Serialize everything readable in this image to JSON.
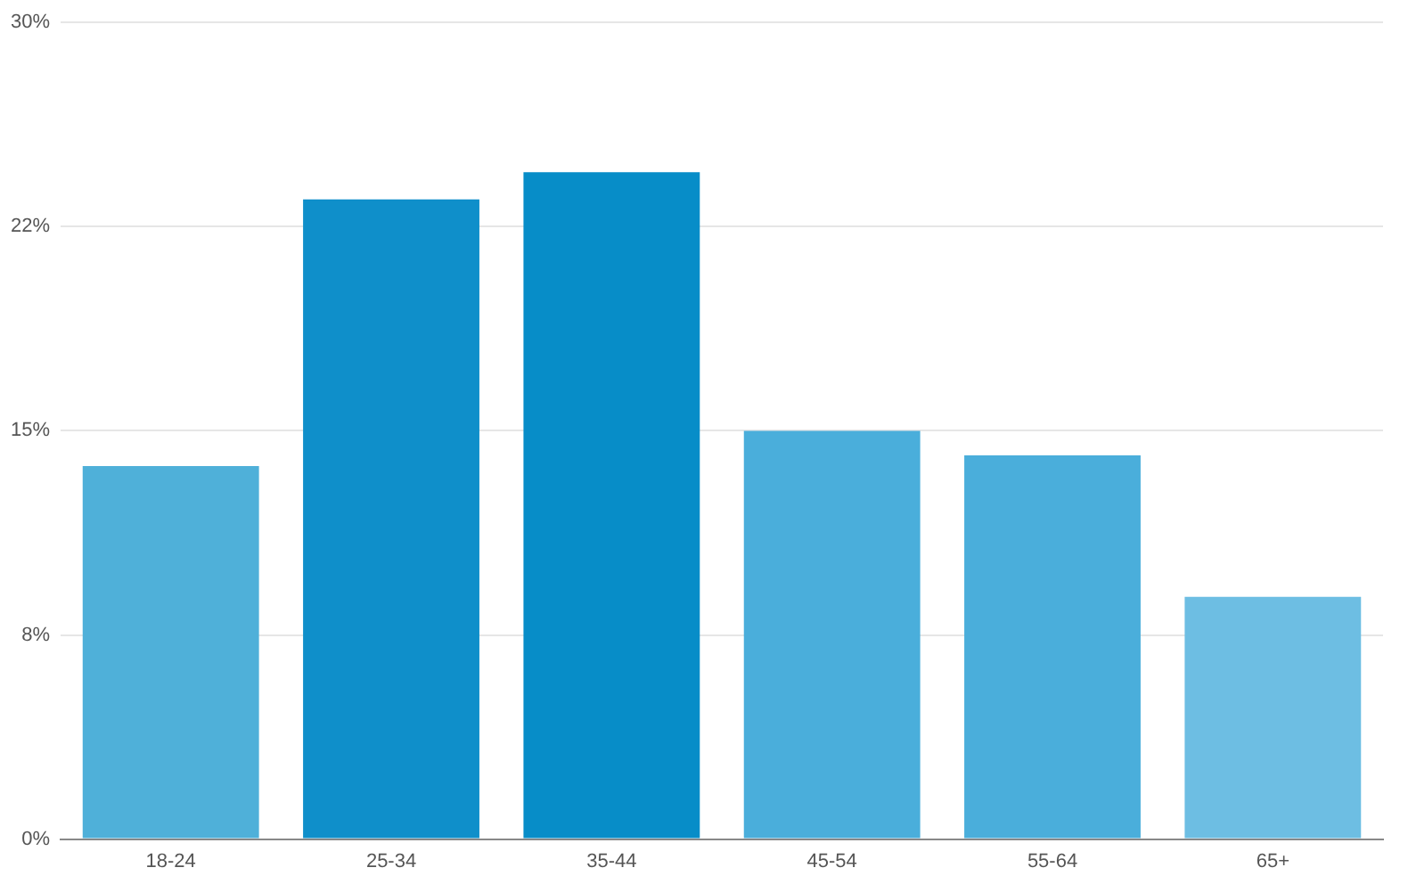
{
  "chart_data": {
    "type": "bar",
    "categories": [
      "18-24",
      "25-34",
      "35-44",
      "45-54",
      "55-64",
      "65+"
    ],
    "values": [
      13.7,
      23.5,
      24.5,
      15.0,
      14.1,
      8.9
    ],
    "colors": [
      "#4fb0d9",
      "#0f8fca",
      "#078dc8",
      "#4aaedb",
      "#4aaedb",
      "#6dbee3"
    ],
    "ylim": [
      0,
      30
    ],
    "yticks": [
      {
        "value": 0,
        "label": "0%"
      },
      {
        "value": 7.5,
        "label": "8%"
      },
      {
        "value": 15,
        "label": "15%"
      },
      {
        "value": 22.5,
        "label": "22%"
      },
      {
        "value": 30,
        "label": "30%"
      }
    ],
    "grid": "y",
    "legend": false
  }
}
